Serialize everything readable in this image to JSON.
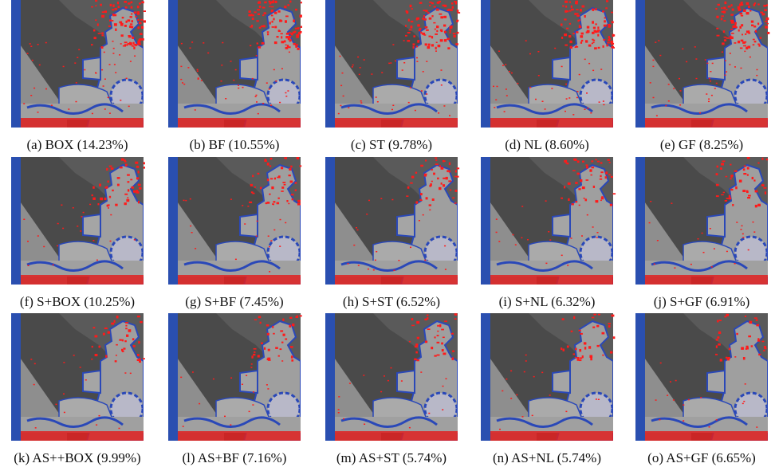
{
  "panels": [
    {
      "caption": "(a) BOX (14.23%)"
    },
    {
      "caption": "(b) BF (10.55%)"
    },
    {
      "caption": "(c) ST (9.78%)"
    },
    {
      "caption": "(d) NL (8.60%)"
    },
    {
      "caption": "(e) GF (8.25%)"
    },
    {
      "caption": "(f) S+BOX (10.25%)"
    },
    {
      "caption": "(g) S+BF (7.45%)"
    },
    {
      "caption": "(h) S+ST (6.52%)"
    },
    {
      "caption": "(i) S+NL (6.32%)"
    },
    {
      "caption": "(j) S+GF (6.91%)"
    },
    {
      "caption": "(k) AS++BOX (9.99%)"
    },
    {
      "caption": "(l) AS+BF (7.16%)"
    },
    {
      "caption": "(m) AS+ST (5.74%)"
    },
    {
      "caption": "(n) AS+NL (5.74%)"
    },
    {
      "caption": "(o) AS+GF (6.65%)"
    }
  ]
}
